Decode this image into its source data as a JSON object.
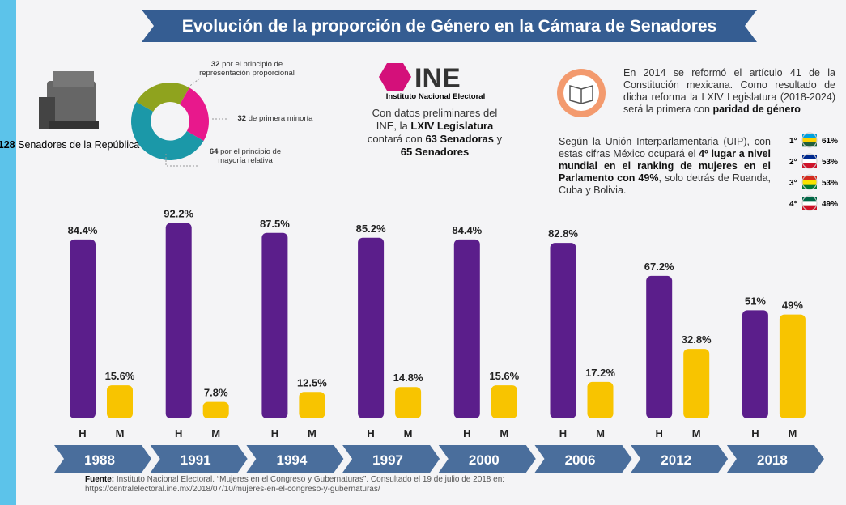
{
  "title": "Evolución de la proporción de Género en la Cámara de Senadores",
  "senate": {
    "count": 128,
    "label": "Senadores de la República"
  },
  "composition": [
    {
      "value": 32,
      "label": "por el principio de representación proporcional",
      "color": "#8fa31e"
    },
    {
      "value": 32,
      "label": "de primera minoría",
      "color": "#e8188c"
    },
    {
      "value": 64,
      "label": "por el principio de mayoría relativa",
      "color": "#1b98a8"
    }
  ],
  "ine": {
    "logo": "INE",
    "name": "Instituto Nacional Electoral",
    "text": [
      {
        "text": "Con datos preliminares del INE, la ",
        "bold": false
      },
      {
        "text": "LXIV Legislatura",
        "bold": true
      },
      {
        "text": " contará con ",
        "bold": false
      },
      {
        "text": "63 Senadoras",
        "bold": true
      },
      {
        "text": " y ",
        "bold": false
      },
      {
        "text": "65 Senadores",
        "bold": true
      }
    ]
  },
  "reform": [
    {
      "text": "En 2014 se reformó el artículo 41 de la Constitución mexicana. Como resultado de dicha reforma la LXIV Legislatura (2018-2024) será la primera con ",
      "bold": false
    },
    {
      "text": "paridad de género",
      "bold": true
    }
  ],
  "uip": [
    {
      "text": "Según la Unión Interparlamentaria (UIP), con estas cifras México ocupará el ",
      "bold": false
    },
    {
      "text": "4º lugar a nivel mundial en el ranking de mujeres en el Parlamento con 49%",
      "bold": true
    },
    {
      "text": ", solo detrás de Ruanda, Cuba y Bolivia.",
      "bold": false
    }
  ],
  "ranking": {
    "ranks": [
      "1°",
      "2°",
      "3°",
      "4°"
    ],
    "values": [
      61,
      53,
      53,
      49
    ],
    "value_labels": [
      "61%",
      "53%",
      "53%",
      "49%"
    ]
  },
  "chart_data": {
    "type": "bar",
    "categories": [
      "1988",
      "1991",
      "1994",
      "1997",
      "2000",
      "2006",
      "2012",
      "2018"
    ],
    "series": [
      {
        "name": "H",
        "color": "#5b1e8b",
        "values": [
          84.4,
          92.2,
          87.5,
          85.2,
          84.4,
          82.8,
          67.2,
          51
        ],
        "value_labels": [
          "84.4%",
          "92.2%",
          "87.5%",
          "85.2%",
          "84.4%",
          "82.8%",
          "67.2%",
          "51%"
        ]
      },
      {
        "name": "M",
        "color": "#f8c400",
        "values": [
          15.6,
          7.8,
          12.5,
          14.8,
          15.6,
          17.2,
          32.8,
          49
        ],
        "value_labels": [
          "15.6%",
          "7.8%",
          "12.5%",
          "14.8%",
          "15.6%",
          "17.2%",
          "32.8%",
          "49%"
        ]
      }
    ],
    "ylim": [
      0,
      100
    ]
  },
  "source": {
    "label": "Fuente:",
    "text": " Instituto Nacional Electoral. “Mujeres en el Congreso y Gubernaturas”. Consultado el 19 de julio de 2018 en:",
    "url": "https://centralelectoral.ine.mx/2018/07/10/mujeres-en-el-congreso-y-gubernaturas/"
  }
}
